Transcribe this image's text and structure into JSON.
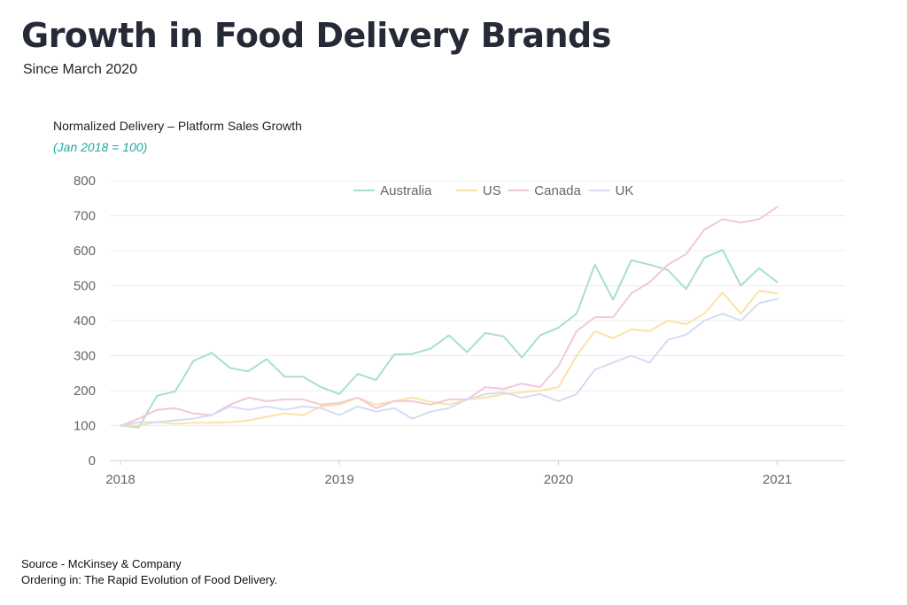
{
  "page": {
    "title": "Growth in Food Delivery Brands",
    "subtitle": "Since March 2020",
    "source_line1": "Source - McKinsey & Company",
    "source_line2": "Ordering in: The Rapid Evolution of Food Delivery."
  },
  "chart_data": {
    "type": "line",
    "title": "Normalized Delivery – Platform Sales Growth",
    "subtitle": "(Jan 2018 = 100)",
    "xlabel": "",
    "ylabel": "",
    "ylim": [
      0,
      800
    ],
    "yticks": [
      "0",
      "100",
      "200",
      "300",
      "400",
      "500",
      "600",
      "700",
      "800"
    ],
    "xticks": [
      "2018",
      "2019",
      "2020",
      "2021"
    ],
    "legend_position": "top-center",
    "grid": true,
    "series": [
      {
        "name": "Australia",
        "color": "#a8e0c8",
        "values": [
          100,
          95,
          185,
          198,
          285,
          308,
          265,
          255,
          290,
          240,
          240,
          210,
          190,
          248,
          230,
          303,
          305,
          320,
          358,
          310,
          365,
          355,
          295,
          358,
          380,
          420,
          560,
          460,
          573,
          560,
          545,
          490,
          580,
          602,
          500,
          550,
          510
        ]
      },
      {
        "name": "US",
        "color": "#fbe3a6",
        "values": [
          100,
          100,
          110,
          105,
          108,
          108,
          110,
          115,
          125,
          135,
          130,
          155,
          160,
          180,
          160,
          170,
          180,
          168,
          160,
          175,
          180,
          190,
          195,
          200,
          210,
          300,
          370,
          350,
          375,
          370,
          400,
          390,
          420,
          480,
          420,
          485,
          478
        ]
      },
      {
        "name": "Canada",
        "color": "#f2c8d4",
        "values": [
          100,
          120,
          145,
          150,
          135,
          130,
          160,
          180,
          170,
          175,
          175,
          160,
          165,
          180,
          150,
          170,
          170,
          160,
          175,
          175,
          210,
          205,
          220,
          210,
          270,
          370,
          410,
          410,
          478,
          510,
          560,
          590,
          660,
          690,
          680,
          690,
          725
        ]
      },
      {
        "name": "UK",
        "color": "#d4dcf5",
        "values": [
          100,
          110,
          110,
          115,
          120,
          130,
          155,
          145,
          155,
          145,
          155,
          150,
          130,
          155,
          140,
          150,
          120,
          140,
          150,
          175,
          190,
          195,
          180,
          190,
          170,
          190,
          260,
          280,
          300,
          280,
          345,
          360,
          400,
          420,
          400,
          450,
          462
        ]
      }
    ]
  }
}
